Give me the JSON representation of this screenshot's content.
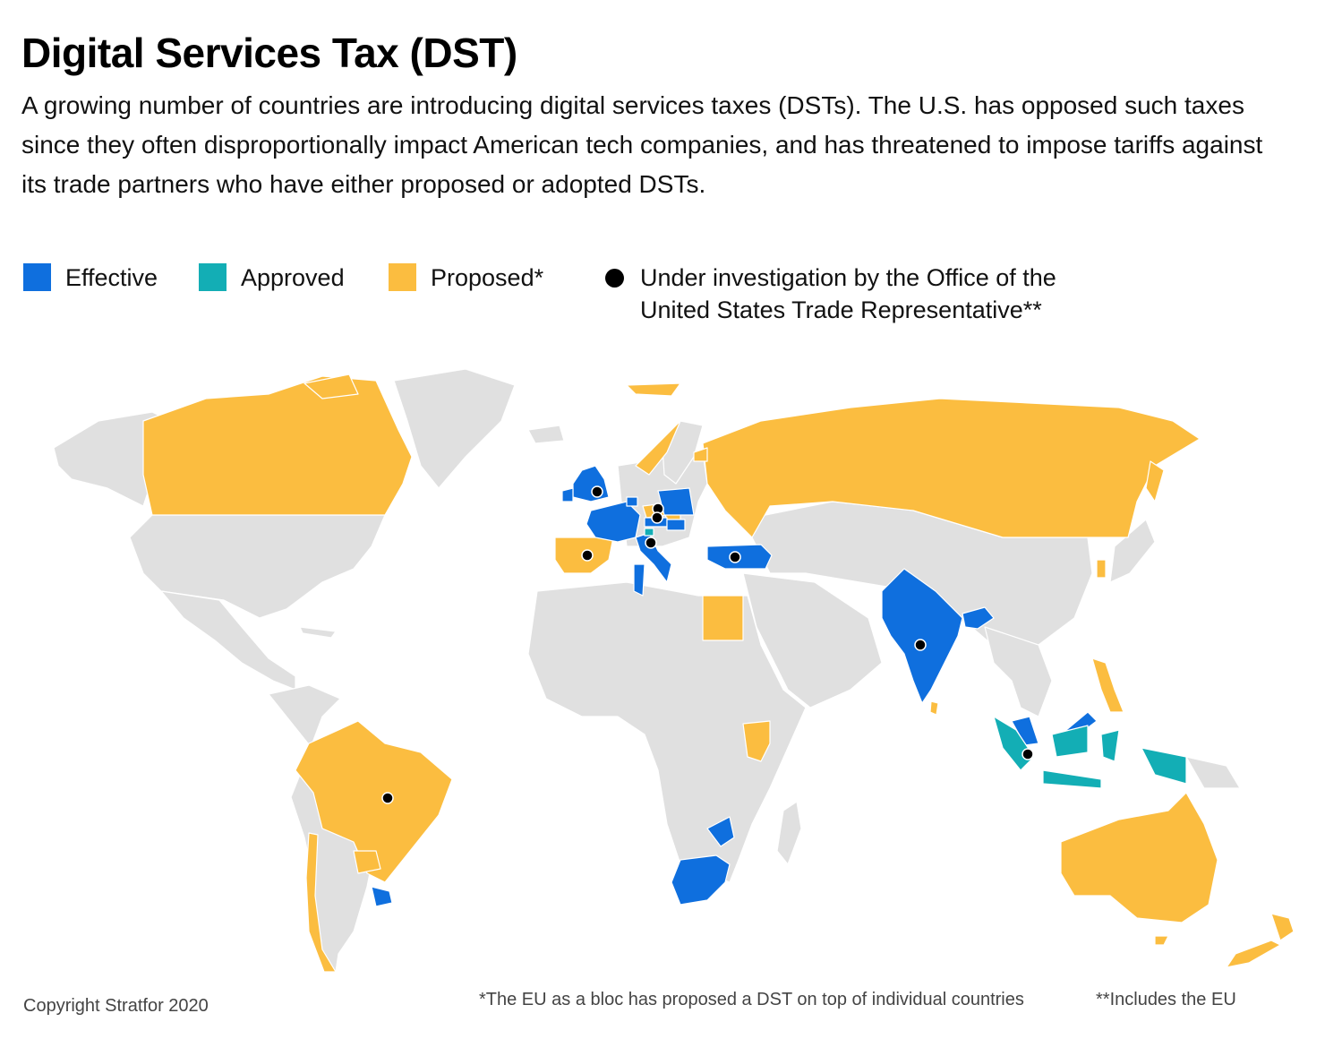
{
  "header": {
    "title": "Digital Services Tax (DST)",
    "subtitle": "A growing number of countries are introducing digital services taxes (DSTs). The U.S. has opposed such taxes since they often disproportionally impact American tech companies, and has threatened to impose tariffs against its trade partners who have either proposed or adopted DSTs."
  },
  "colors": {
    "effective": "#0f6fde",
    "approved": "#13aeb5",
    "proposed": "#fbbd40",
    "other_land": "#e0e0e0",
    "marker": "#000000"
  },
  "legend": {
    "effective": "Effective",
    "approved": "Approved",
    "proposed": "Proposed*",
    "investigation_line1": "Under investigation by the Office of the",
    "investigation_line2": "United States Trade Representative**"
  },
  "map": {
    "regions": [
      {
        "name": "Canada",
        "status": "proposed"
      },
      {
        "name": "Brazil",
        "status": "proposed",
        "investigated": true
      },
      {
        "name": "Chile",
        "status": "proposed"
      },
      {
        "name": "Paraguay",
        "status": "proposed"
      },
      {
        "name": "Uruguay",
        "status": "effective"
      },
      {
        "name": "United Kingdom",
        "status": "effective",
        "investigated": true
      },
      {
        "name": "France",
        "status": "effective"
      },
      {
        "name": "Spain",
        "status": "proposed",
        "investigated": true
      },
      {
        "name": "Italy",
        "status": "effective",
        "investigated": true
      },
      {
        "name": "Austria",
        "status": "effective",
        "investigated": true
      },
      {
        "name": "Czech Republic",
        "status": "proposed",
        "investigated": true
      },
      {
        "name": "Slovakia",
        "status": "proposed"
      },
      {
        "name": "Hungary",
        "status": "effective"
      },
      {
        "name": "Slovenia",
        "status": "approved"
      },
      {
        "name": "Poland",
        "status": "effective"
      },
      {
        "name": "Belgium",
        "status": "effective"
      },
      {
        "name": "Norway",
        "status": "proposed"
      },
      {
        "name": "Latvia",
        "status": "proposed"
      },
      {
        "name": "Russia",
        "status": "proposed"
      },
      {
        "name": "Turkey",
        "status": "effective",
        "investigated": true
      },
      {
        "name": "Tunisia",
        "status": "effective"
      },
      {
        "name": "Egypt",
        "status": "proposed"
      },
      {
        "name": "Kenya",
        "status": "proposed"
      },
      {
        "name": "Zimbabwe",
        "status": "effective"
      },
      {
        "name": "South Africa",
        "status": "effective"
      },
      {
        "name": "India",
        "status": "effective",
        "investigated": true
      },
      {
        "name": "Bangladesh",
        "status": "effective"
      },
      {
        "name": "Sri Lanka",
        "status": "proposed"
      },
      {
        "name": "South Korea",
        "status": "proposed"
      },
      {
        "name": "Philippines",
        "status": "proposed"
      },
      {
        "name": "Malaysia",
        "status": "effective"
      },
      {
        "name": "Indonesia",
        "status": "approved",
        "investigated": true
      },
      {
        "name": "Australia",
        "status": "proposed"
      },
      {
        "name": "New Zealand",
        "status": "proposed"
      }
    ]
  },
  "footer": {
    "copyright": "Copyright Stratfor 2020",
    "note1": "*The EU as a bloc has proposed a DST on top of individual countries",
    "note2": "**Includes the EU"
  }
}
